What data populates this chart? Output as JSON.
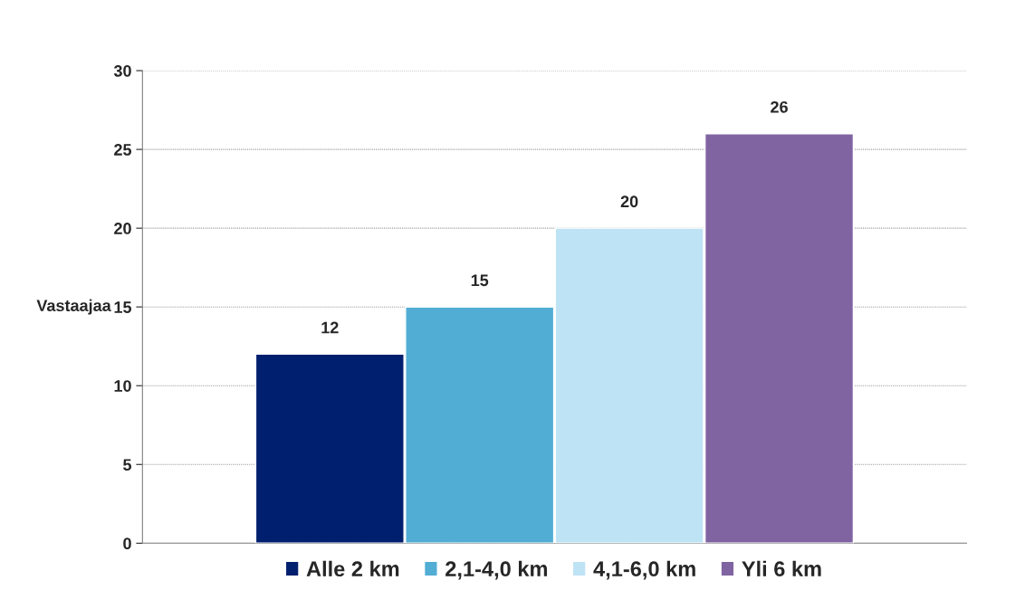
{
  "chart_data": {
    "type": "bar",
    "ylabel": "Vastaajaa",
    "categories": [
      null
    ],
    "series": [
      {
        "name": "Alle 2 km",
        "color": "#001f6e",
        "values": [
          12
        ]
      },
      {
        "name": "2,1-4,0 km",
        "color": "#52add5",
        "values": [
          15
        ]
      },
      {
        "name": "4,1-6,0 km",
        "color": "#bde3f5",
        "values": [
          20
        ]
      },
      {
        "name": "Yli 6 km",
        "color": "#8064a2",
        "values": [
          26
        ]
      }
    ],
    "ylim": [
      0,
      30
    ],
    "yticks": [
      0,
      5,
      10,
      15,
      20,
      25,
      30
    ],
    "grid": "y",
    "legend": "bottom",
    "data_labels": true
  }
}
